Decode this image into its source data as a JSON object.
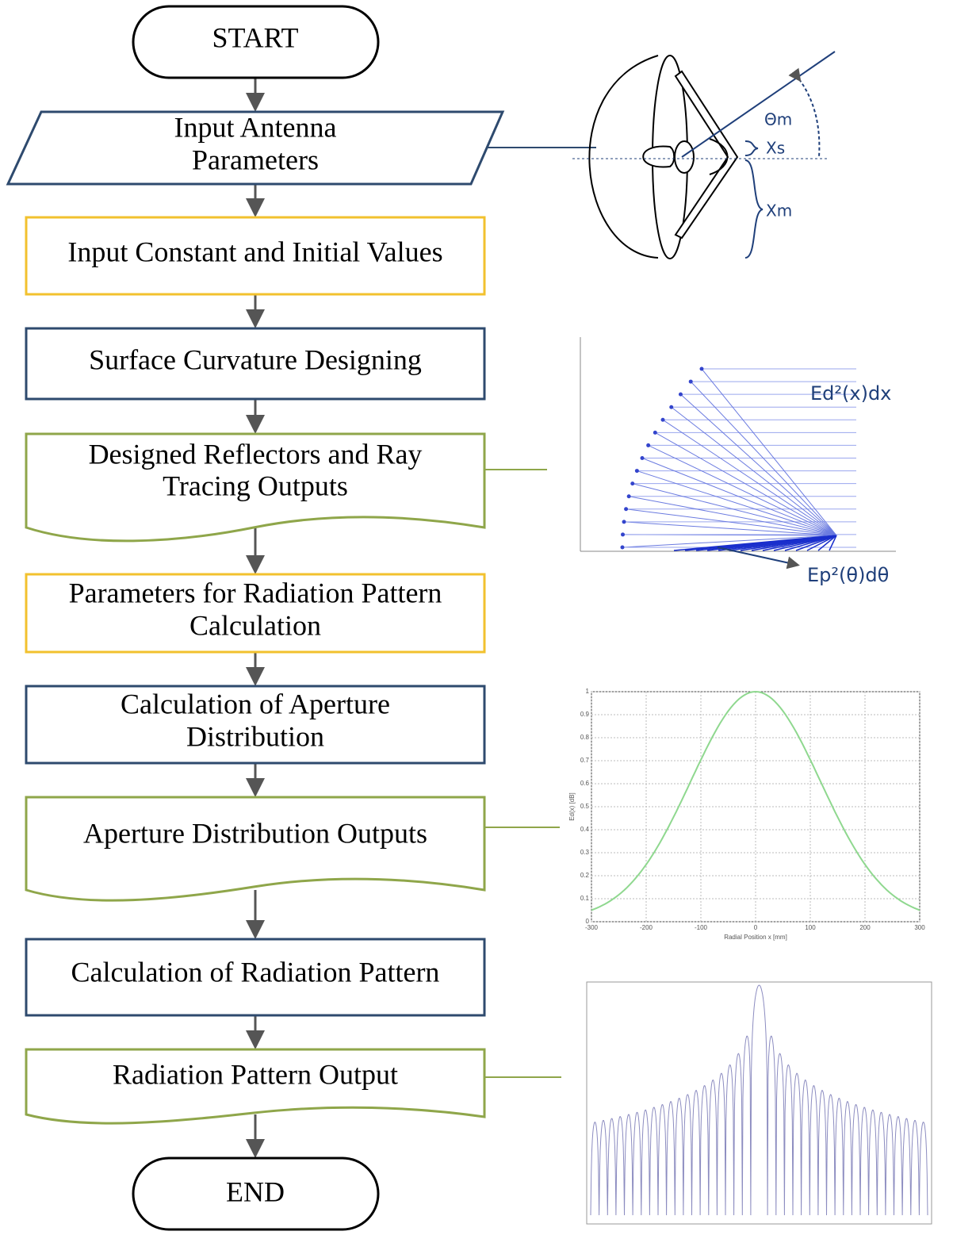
{
  "nodes": [
    {
      "lines": [
        "START"
      ]
    },
    {
      "lines": [
        "Input Antenna",
        "Parameters"
      ]
    },
    {
      "lines": [
        "Input Constant and Initial Values"
      ]
    },
    {
      "lines": [
        "Surface Curvature Designing"
      ]
    },
    {
      "lines": [
        "Designed Reflectors and Ray",
        "Tracing Outputs"
      ]
    },
    {
      "lines": [
        "Parameters for Radiation Pattern",
        "Calculation"
      ]
    },
    {
      "lines": [
        "Calculation of Aperture",
        "Distribution"
      ]
    },
    {
      "lines": [
        "Aperture Distribution Outputs"
      ]
    },
    {
      "lines": [
        "Calculation of Radiation Pattern"
      ]
    },
    {
      "lines": [
        "Radiation Pattern Output"
      ]
    },
    {
      "lines": [
        "END"
      ]
    }
  ],
  "antenna": {
    "angle": "Θm",
    "sub": "Xs",
    "main": "Xm"
  },
  "ray_tracing": {
    "aperture": "Ed²(x)dx",
    "feed": "Ep²(θ)dθ"
  },
  "aperture_plot": {
    "xlabel": "Radial Position x [mm]",
    "ylabel": "Ed(x) [dB]",
    "xticks": [
      -300,
      -200,
      -100,
      0,
      100,
      200,
      300
    ],
    "yticks": [
      0,
      0.1,
      0.2,
      0.3,
      0.4,
      0.5,
      0.6,
      0.7,
      0.8,
      0.9,
      1
    ]
  }
}
